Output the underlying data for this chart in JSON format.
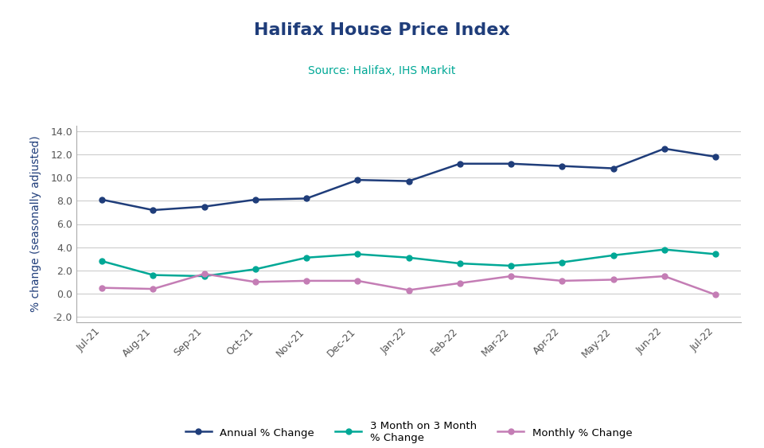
{
  "title": "Halifax House Price Index",
  "subtitle": "Source: Halifax, IHS Markit",
  "ylabel": "% change (seasonally adjusted)",
  "categories": [
    "Jul-21",
    "Aug-21",
    "Sep-21",
    "Oct-21",
    "Nov-21",
    "Dec-21",
    "Jan-22",
    "Feb-22",
    "Mar-22",
    "Apr-22",
    "May-22",
    "Jun-22",
    "Jul-22"
  ],
  "annual": [
    8.1,
    7.2,
    7.5,
    8.1,
    8.2,
    9.8,
    9.7,
    11.2,
    11.2,
    11.0,
    10.8,
    12.5,
    11.8
  ],
  "three_month": [
    2.8,
    1.6,
    1.5,
    2.1,
    3.1,
    3.4,
    3.1,
    2.6,
    2.4,
    2.7,
    3.3,
    3.8,
    3.4
  ],
  "monthly": [
    0.5,
    0.4,
    1.7,
    1.0,
    1.1,
    1.1,
    0.3,
    0.9,
    1.5,
    1.1,
    1.2,
    1.5,
    -0.1
  ],
  "annual_color": "#1F3D7A",
  "three_month_color": "#00A896",
  "monthly_color": "#C47DB5",
  "title_color": "#1F3D7A",
  "subtitle_color": "#00A896",
  "ylabel_color": "#1F3D7A",
  "background_color": "#FFFFFF",
  "ylim": [
    -2.5,
    14.5
  ],
  "yticks": [
    -2.0,
    0.0,
    2.0,
    4.0,
    6.0,
    8.0,
    10.0,
    12.0,
    14.0
  ],
  "legend_annual": "Annual % Change",
  "legend_three_month": "3 Month on 3 Month\n% Change",
  "legend_monthly": "Monthly % Change"
}
